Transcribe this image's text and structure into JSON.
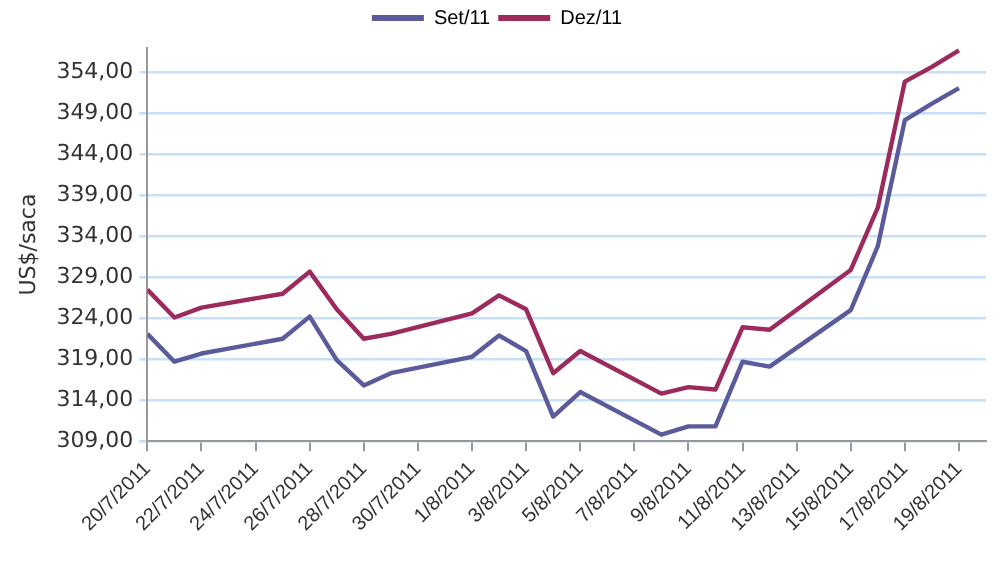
{
  "chart_data": {
    "type": "line",
    "ylabel": "US$/saca",
    "x": [
      "2011-07-20",
      "2011-07-21",
      "2011-07-22",
      "2011-07-25",
      "2011-07-26",
      "2011-07-27",
      "2011-07-28",
      "2011-07-29",
      "2011-08-01",
      "2011-08-02",
      "2011-08-03",
      "2011-08-04",
      "2011-08-05",
      "2011-08-08",
      "2011-08-09",
      "2011-08-10",
      "2011-08-11",
      "2011-08-12",
      "2011-08-15",
      "2011-08-16",
      "2011-08-17",
      "2011-08-18",
      "2011-08-19"
    ],
    "series": [
      {
        "name": "Set/11",
        "color": "#5b5b9c",
        "values": [
          322.1,
          318.7,
          319.7,
          321.5,
          324.2,
          318.9,
          315.8,
          317.3,
          319.3,
          321.9,
          320.0,
          312.0,
          315.0,
          309.8,
          310.8,
          310.8,
          318.7,
          318.1,
          325.0,
          332.8,
          348.2,
          350.2,
          352.1
        ]
      },
      {
        "name": "Dez/11",
        "color": "#9c2a5c",
        "values": [
          327.5,
          324.1,
          325.3,
          327.0,
          329.7,
          325.1,
          321.5,
          322.1,
          324.6,
          326.8,
          325.1,
          317.3,
          320.0,
          314.8,
          315.6,
          315.3,
          322.9,
          322.6,
          329.9,
          337.5,
          352.9,
          354.7,
          356.7
        ]
      }
    ],
    "xlim": [
      "2011-07-20",
      "2011-08-20"
    ],
    "xticks": [
      {
        "value": "2011-07-20",
        "label": "20/7/2011"
      },
      {
        "value": "2011-07-22",
        "label": "22/7/2011"
      },
      {
        "value": "2011-07-24",
        "label": "24/7/2011"
      },
      {
        "value": "2011-07-26",
        "label": "26/7/2011"
      },
      {
        "value": "2011-07-28",
        "label": "28/7/2011"
      },
      {
        "value": "2011-07-30",
        "label": "30/7/2011"
      },
      {
        "value": "2011-08-01",
        "label": "1/8/2011"
      },
      {
        "value": "2011-08-03",
        "label": "3/8/2011"
      },
      {
        "value": "2011-08-05",
        "label": "5/8/2011"
      },
      {
        "value": "2011-08-07",
        "label": "7/8/2011"
      },
      {
        "value": "2011-08-09",
        "label": "9/8/2011"
      },
      {
        "value": "2011-08-11",
        "label": "11/8/2011"
      },
      {
        "value": "2011-08-13",
        "label": "13/8/2011"
      },
      {
        "value": "2011-08-15",
        "label": "15/8/2011"
      },
      {
        "value": "2011-08-17",
        "label": "17/8/2011"
      },
      {
        "value": "2011-08-19",
        "label": "19/8/2011"
      }
    ],
    "ylim": [
      309,
      357
    ],
    "yticks": [
      {
        "value": 309,
        "label": "309,00"
      },
      {
        "value": 314,
        "label": "314,00"
      },
      {
        "value": 319,
        "label": "319,00"
      },
      {
        "value": 324,
        "label": "324,00"
      },
      {
        "value": 329,
        "label": "329,00"
      },
      {
        "value": 334,
        "label": "334,00"
      },
      {
        "value": 339,
        "label": "339,00"
      },
      {
        "value": 344,
        "label": "344,00"
      },
      {
        "value": 349,
        "label": "349,00"
      },
      {
        "value": 354,
        "label": "354,00"
      }
    ],
    "grid": "y",
    "legend": "top",
    "marker": "none",
    "line_style": "solid"
  }
}
